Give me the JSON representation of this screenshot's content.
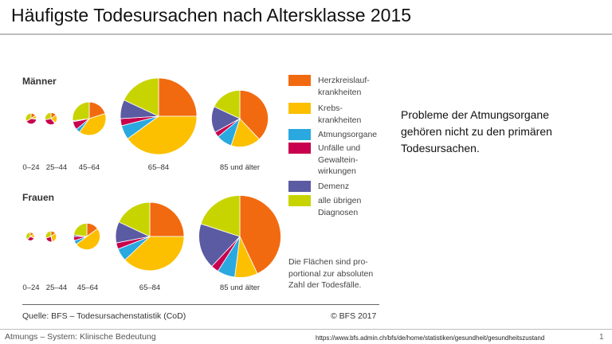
{
  "title": "Häufigste Todesursachen nach Altersklasse 2015",
  "note": "Probleme der Atmungsorgane gehören nicht zu den primären Todesursachen.",
  "footer": {
    "left": "Atmungs – System:  Klinische Bedeutung",
    "url": "https://www.bfs.admin.ch/bfs/de/home/statistiken/gesundheit/gesundheitszustand",
    "page": "1"
  },
  "chart_data": {
    "type": "pie",
    "categories": [
      "Herzkreislaufkrankheiten",
      "Krebskrankheiten",
      "Atmungsorgane",
      "Unfälle und Gewalteinwirkungen",
      "Demenz",
      "alle übrigen Diagnosen"
    ],
    "legend": [
      {
        "label": "Herzkreislauf-\nkrankheiten",
        "color": "#f26a10"
      },
      {
        "label": "Krebs-\nkrankheiten",
        "color": "#fcc000"
      },
      {
        "label": "Atmungsorgane",
        "color": "#2aa8e0"
      },
      {
        "label": "Unfälle und\nGewaltein-\nwirkungen",
        "color": "#c8004d"
      },
      {
        "label": "Demenz",
        "color": "#5b5ba3"
      },
      {
        "label": "alle übrigen\nDiagnosen",
        "color": "#c8d400"
      }
    ],
    "area_note": "Die Flächen sind pro-\nportional zur absoluten\nZahl der Todesfälle.",
    "source": "Quelle: BFS – Todesursachenstatistik (CoD)",
    "copyright": "© BFS 2017",
    "groups": [
      {
        "name": "Männer",
        "pies": [
          {
            "age": "0–24",
            "relative_area": 0.02,
            "shares": [
              0.15,
              0.1,
              0.02,
              0.4,
              0.0,
              0.33
            ]
          },
          {
            "age": "25–44",
            "relative_area": 0.025,
            "shares": [
              0.15,
              0.22,
              0.02,
              0.33,
              0.0,
              0.28
            ]
          },
          {
            "age": "45–64",
            "relative_area": 0.19,
            "shares": [
              0.2,
              0.4,
              0.04,
              0.08,
              0.01,
              0.27
            ]
          },
          {
            "age": "65–84",
            "relative_area": 1.0,
            "shares": [
              0.25,
              0.4,
              0.06,
              0.03,
              0.08,
              0.18
            ]
          },
          {
            "age": "85 und älter",
            "relative_area": 0.55,
            "shares": [
              0.38,
              0.17,
              0.09,
              0.03,
              0.15,
              0.18
            ]
          }
        ]
      },
      {
        "name": "Frauen",
        "pies": [
          {
            "age": "0–24",
            "relative_area": 0.012,
            "shares": [
              0.15,
              0.15,
              0.02,
              0.3,
              0.0,
              0.38
            ]
          },
          {
            "age": "25–44",
            "relative_area": 0.02,
            "shares": [
              0.15,
              0.3,
              0.02,
              0.23,
              0.0,
              0.3
            ]
          },
          {
            "age": "45–64",
            "relative_area": 0.12,
            "shares": [
              0.15,
              0.5,
              0.05,
              0.05,
              0.02,
              0.23
            ]
          },
          {
            "age": "65–84",
            "relative_area": 0.8,
            "shares": [
              0.25,
              0.38,
              0.06,
              0.03,
              0.1,
              0.18
            ]
          },
          {
            "age": "85 und älter",
            "relative_area": 1.15,
            "shares": [
              0.43,
              0.09,
              0.07,
              0.03,
              0.18,
              0.2
            ]
          }
        ]
      }
    ]
  }
}
